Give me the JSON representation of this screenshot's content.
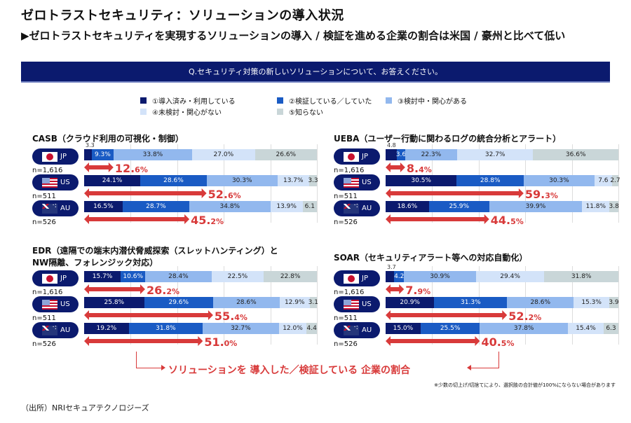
{
  "title": "ゼロトラストセキュリティ：ソリューションの導入状況",
  "subtitle": "▶ゼロトラストセキュリティを実現するソリューションの導入 / 検証を進める企業の割合は米国 / 豪州と比べて低い",
  "question": "Q.セキュリティ対策の新しいソリューションについて、お答えください。",
  "legend": [
    {
      "label": "①導入済み・利用している",
      "color": "#0b1a6e"
    },
    {
      "label": "②検証している／していた",
      "color": "#1a5bc4"
    },
    {
      "label": "③検討中・関心がある",
      "color": "#92b8ee"
    },
    {
      "label": "④未検討・関心がない",
      "color": "#d3e3f9"
    },
    {
      "label": "⑤知らない",
      "color": "#c9d6d8"
    }
  ],
  "bottom_caption": "ソリューションを 導入した／検証している 企業の割合",
  "note": "※少数の切上げ/切捨てにより、選択肢の合計値が100%にならない場合があります",
  "source": "（出所）NRIセキュアテクノロジーズ",
  "chart_data": [
    {
      "type": "bar",
      "stacked": true,
      "orientation": "horizontal",
      "title": "CASB（クラウド利用の可視化・制御）",
      "categories": [
        "JP",
        "US",
        "AU"
      ],
      "sample_sizes": [
        "n=1,616",
        "n=511",
        "n=526"
      ],
      "series": [
        {
          "name": "①導入済み・利用している",
          "values": [
            3.3,
            24.1,
            16.5
          ]
        },
        {
          "name": "②検証している／していた",
          "values": [
            9.3,
            28.6,
            28.7
          ]
        },
        {
          "name": "③検討中・関心がある",
          "values": [
            33.8,
            30.3,
            34.8
          ]
        },
        {
          "name": "④未検討・関心がない",
          "values": [
            27.0,
            13.7,
            13.9
          ]
        },
        {
          "name": "⑤知らない",
          "values": [
            26.6,
            3.3,
            6.1
          ]
        }
      ],
      "labels": [
        [
          "3.3",
          "9.3%",
          "33.8%",
          "27.0%",
          "26.6%"
        ],
        [
          "24.1%",
          "28.6%",
          "30.3%",
          "13.7%",
          "3.3"
        ],
        [
          "16.5%",
          "28.7%",
          "34.8%",
          "13.9%",
          "6.1"
        ]
      ],
      "totals": [
        {
          "main": "12.",
          "dec": "6%",
          "value": 12.6
        },
        {
          "main": "52.",
          "dec": "6%",
          "value": 52.6
        },
        {
          "main": "45.",
          "dec": "2%",
          "value": 45.2
        }
      ],
      "xlim": [
        0,
        100
      ]
    },
    {
      "type": "bar",
      "stacked": true,
      "orientation": "horizontal",
      "title": "UEBA（ユーザー行動に関わるログの統合分析とアラート）",
      "categories": [
        "JP",
        "US",
        "AU"
      ],
      "sample_sizes": [
        "n=1,616",
        "n=511",
        "n=526"
      ],
      "series": [
        {
          "name": "①導入済み・利用している",
          "values": [
            4.8,
            30.5,
            18.6
          ]
        },
        {
          "name": "②検証している／していた",
          "values": [
            3.6,
            28.8,
            25.9
          ]
        },
        {
          "name": "③検討中・関心がある",
          "values": [
            22.3,
            30.3,
            39.9
          ]
        },
        {
          "name": "④未検討・関心がない",
          "values": [
            32.7,
            7.6,
            11.8
          ]
        },
        {
          "name": "⑤知らない",
          "values": [
            36.6,
            2.7,
            3.8
          ]
        }
      ],
      "labels": [
        [
          "4.8",
          "3.6",
          "22.3%",
          "32.7%",
          "36.6%"
        ],
        [
          "30.5%",
          "28.8%",
          "30.3%",
          "7.6",
          "2.7"
        ],
        [
          "18.6%",
          "25.9%",
          "39.9%",
          "11.8%",
          "3.8"
        ]
      ],
      "totals": [
        {
          "main": "8.",
          "dec": "4%",
          "value": 8.4
        },
        {
          "main": "59.",
          "dec": "3%",
          "value": 59.3
        },
        {
          "main": "44.",
          "dec": "5%",
          "value": 44.5
        }
      ],
      "xlim": [
        0,
        100
      ]
    },
    {
      "type": "bar",
      "stacked": true,
      "orientation": "horizontal",
      "title": "EDR（遠隔での端末内潜伏脅威探索（スレットハンティング）と NW隔離、フォレンジック対応）",
      "categories": [
        "JP",
        "US",
        "AU"
      ],
      "sample_sizes": [
        "n=1,616",
        "n=511",
        "n=526"
      ],
      "series": [
        {
          "name": "①導入済み・利用している",
          "values": [
            15.7,
            25.8,
            19.2
          ]
        },
        {
          "name": "②検証している／していた",
          "values": [
            10.6,
            29.6,
            31.8
          ]
        },
        {
          "name": "③検討中・関心がある",
          "values": [
            28.4,
            28.6,
            32.7
          ]
        },
        {
          "name": "④未検討・関心がない",
          "values": [
            22.5,
            12.9,
            12.0
          ]
        },
        {
          "name": "⑤知らない",
          "values": [
            22.8,
            3.1,
            4.4
          ]
        }
      ],
      "labels": [
        [
          "15.7%",
          "10.6%",
          "28.4%",
          "22.5%",
          "22.8%"
        ],
        [
          "25.8%",
          "29.6%",
          "28.6%",
          "12.9%",
          "3.1"
        ],
        [
          "19.2%",
          "31.8%",
          "32.7%",
          "12.0%",
          "4.4"
        ]
      ],
      "totals": [
        {
          "main": "26.",
          "dec": "2%",
          "value": 26.2
        },
        {
          "main": "55.",
          "dec": "4%",
          "value": 55.4
        },
        {
          "main": "51.",
          "dec": "0%",
          "value": 51.0
        }
      ],
      "xlim": [
        0,
        100
      ]
    },
    {
      "type": "bar",
      "stacked": true,
      "orientation": "horizontal",
      "title": "SOAR（セキュリティアラート等への対応自動化）",
      "categories": [
        "JP",
        "US",
        "AU"
      ],
      "sample_sizes": [
        "n=1,616",
        "n=511",
        "n=526"
      ],
      "series": [
        {
          "name": "①導入済み・利用している",
          "values": [
            3.7,
            20.9,
            15.0
          ]
        },
        {
          "name": "②検証している／していた",
          "values": [
            4.2,
            31.3,
            25.5
          ]
        },
        {
          "name": "③検討中・関心がある",
          "values": [
            30.9,
            28.6,
            37.8
          ]
        },
        {
          "name": "④未検討・関心がない",
          "values": [
            29.4,
            15.3,
            15.4
          ]
        },
        {
          "name": "⑤知らない",
          "values": [
            31.8,
            3.9,
            6.3
          ]
        }
      ],
      "labels": [
        [
          "3.7",
          "4.2",
          "30.9%",
          "29.4%",
          "31.8%"
        ],
        [
          "20.9%",
          "31.3%",
          "28.6%",
          "15.3%",
          "3.9"
        ],
        [
          "15.0%",
          "25.5%",
          "37.8%",
          "15.4%",
          "6.3"
        ]
      ],
      "totals": [
        {
          "main": "7.",
          "dec": "9%",
          "value": 7.9
        },
        {
          "main": "52.",
          "dec": "2%",
          "value": 52.2
        },
        {
          "main": "40.",
          "dec": "5%",
          "value": 40.5
        }
      ],
      "xlim": [
        0,
        100
      ]
    }
  ]
}
